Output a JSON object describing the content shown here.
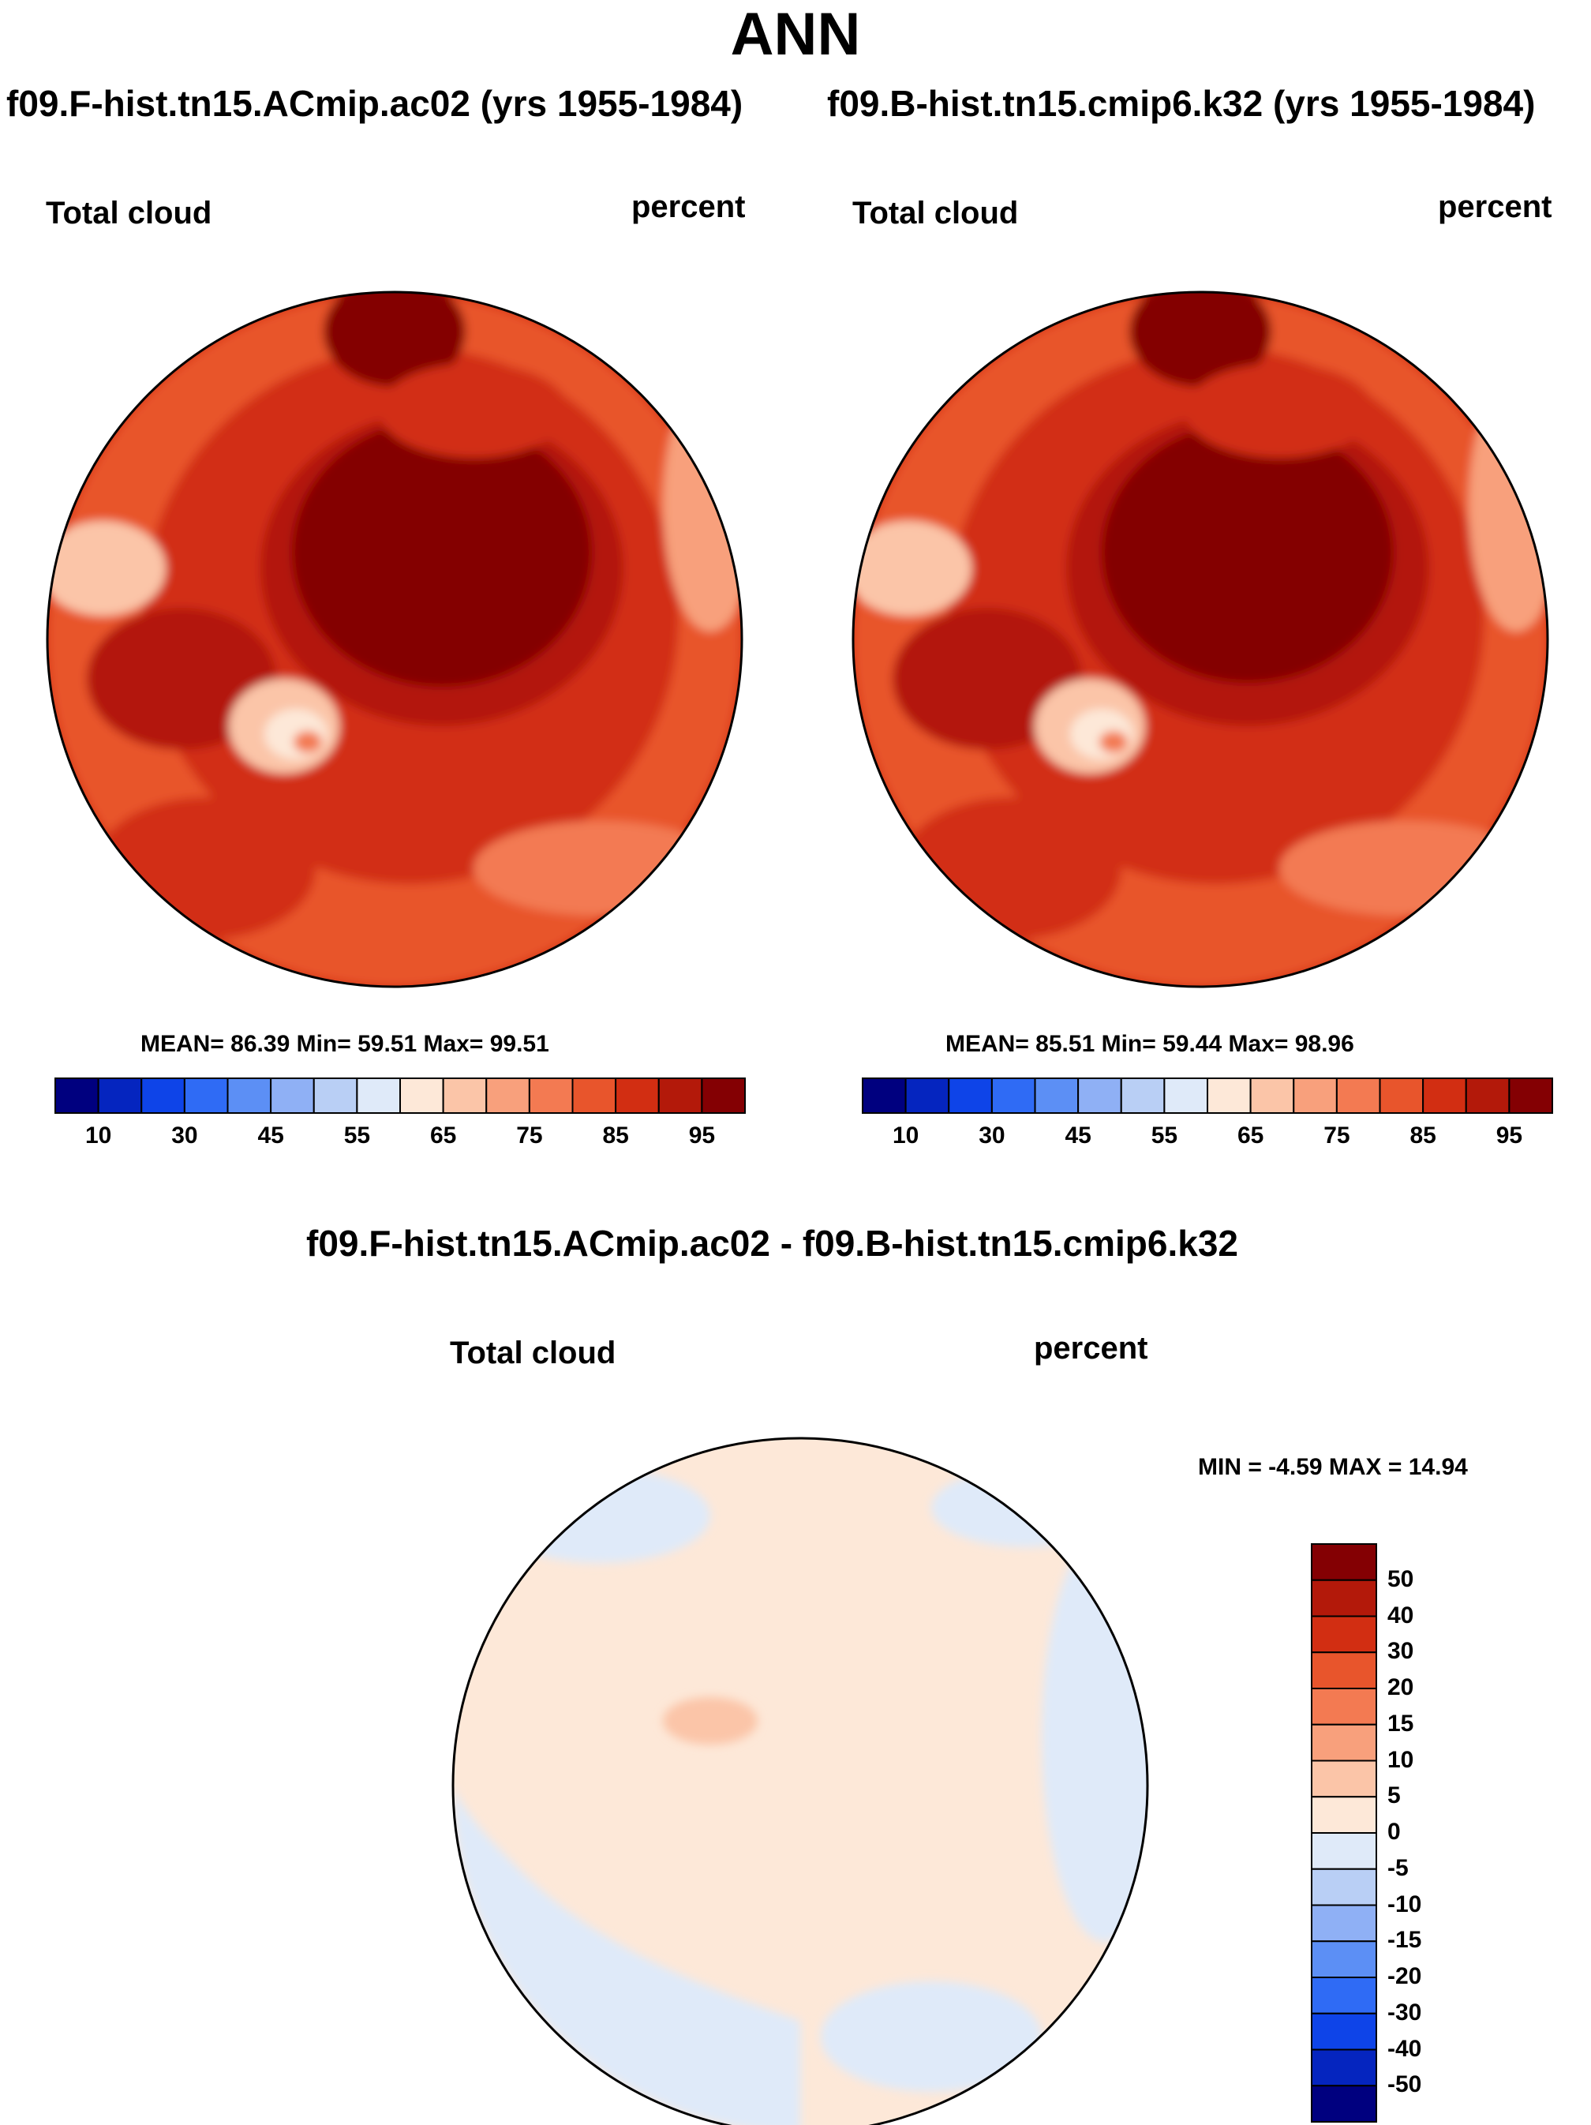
{
  "figure": {
    "title": "ANN"
  },
  "panels": [
    {
      "case": "f09.F-hist.tn15.ACmip.ac02 (yrs 1955-1984)",
      "variable": "Total cloud",
      "units": "percent",
      "stats": "MEAN=  86.39  Min=  59.51  Max=  99.51"
    },
    {
      "case": "f09.B-hist.tn15.cmip6.k32 (yrs 1955-1984)",
      "variable": "Total cloud",
      "units": "percent",
      "stats": "MEAN=  85.51  Min=  59.44  Max=  98.96"
    }
  ],
  "diff": {
    "title": "f09.F-hist.tn15.ACmip.ac02 - f09.B-hist.tn15.cmip6.k32",
    "variable": "Total cloud",
    "units": "percent",
    "stats": "MIN =  -4.59 MAX =  14.94"
  },
  "chart_data": [
    {
      "type": "heatmap",
      "projection": "north polar stereographic",
      "title": "Total cloud",
      "units": "percent",
      "mean": 86.39,
      "min": 59.51,
      "max": 99.51,
      "colorbar": {
        "orientation": "horizontal",
        "colors": [
          "#00007f",
          "#0525bf",
          "#0e44e8",
          "#2f6bf5",
          "#5c8ff5",
          "#8fb0f5",
          "#b9cff5",
          "#dfeaf9",
          "#fde8d8",
          "#fbc5a8",
          "#f8a07c",
          "#f37a52",
          "#e8552c",
          "#d22e12",
          "#b3190a",
          "#840003"
        ],
        "tick_labels": [
          "10",
          "30",
          "45",
          "55",
          "65",
          "75",
          "85",
          "95"
        ]
      }
    },
    {
      "type": "heatmap",
      "projection": "north polar stereographic",
      "title": "Total cloud",
      "units": "percent",
      "mean": 85.51,
      "min": 59.44,
      "max": 98.96,
      "colorbar": {
        "orientation": "horizontal",
        "colors": [
          "#00007f",
          "#0525bf",
          "#0e44e8",
          "#2f6bf5",
          "#5c8ff5",
          "#8fb0f5",
          "#b9cff5",
          "#dfeaf9",
          "#fde8d8",
          "#fbc5a8",
          "#f8a07c",
          "#f37a52",
          "#e8552c",
          "#d22e12",
          "#b3190a",
          "#840003"
        ],
        "tick_labels": [
          "10",
          "30",
          "45",
          "55",
          "65",
          "75",
          "85",
          "95"
        ]
      }
    },
    {
      "type": "heatmap",
      "projection": "north polar stereographic",
      "title": "Total cloud",
      "units": "percent",
      "min": -4.59,
      "max": 14.94,
      "colorbar": {
        "orientation": "vertical",
        "colors_top_to_bottom": [
          "#840003",
          "#b3190a",
          "#d22e12",
          "#e8552c",
          "#f37a52",
          "#f8a07c",
          "#fbc5a8",
          "#fde8d8",
          "#dfeaf9",
          "#b9cff5",
          "#8fb0f5",
          "#5c8ff5",
          "#2f6bf5",
          "#0e44e8",
          "#0525bf",
          "#00007f"
        ],
        "tick_labels_top_to_bottom": [
          "50",
          "40",
          "30",
          "20",
          "15",
          "10",
          "5",
          "0",
          "-5",
          "-10",
          "-15",
          "-20",
          "-30",
          "-40",
          "-50"
        ]
      }
    }
  ]
}
